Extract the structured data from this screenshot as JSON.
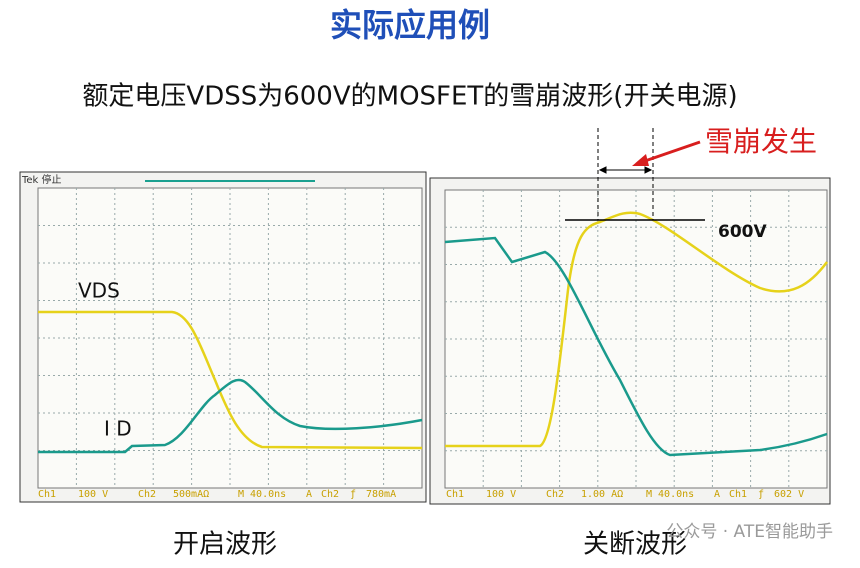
{
  "title": "实际应用例",
  "subtitle": "额定电压VDSS为600V的MOSFET的雪崩波形(开关电源)",
  "left_scope": {
    "caption": "开启波形",
    "header": "Tek 停止",
    "trace_labels": {
      "vds": "VDS",
      "id": "I D"
    },
    "status": [
      "Ch1",
      "100 V",
      "Ch2",
      "500mAΩ",
      "M 40.0ns",
      "A",
      "Ch2",
      "ƒ",
      "780mA"
    ]
  },
  "right_scope": {
    "caption": "关断波形",
    "voltage_label": "600V",
    "annotation": "雪崩发生",
    "status": [
      "Ch1",
      "100 V",
      "Ch2",
      "1.00 AΩ",
      "M 40.0ns",
      "A",
      "Ch1",
      "ƒ",
      "602 V"
    ]
  },
  "watermark": "公众号 · ATE智能助手"
}
